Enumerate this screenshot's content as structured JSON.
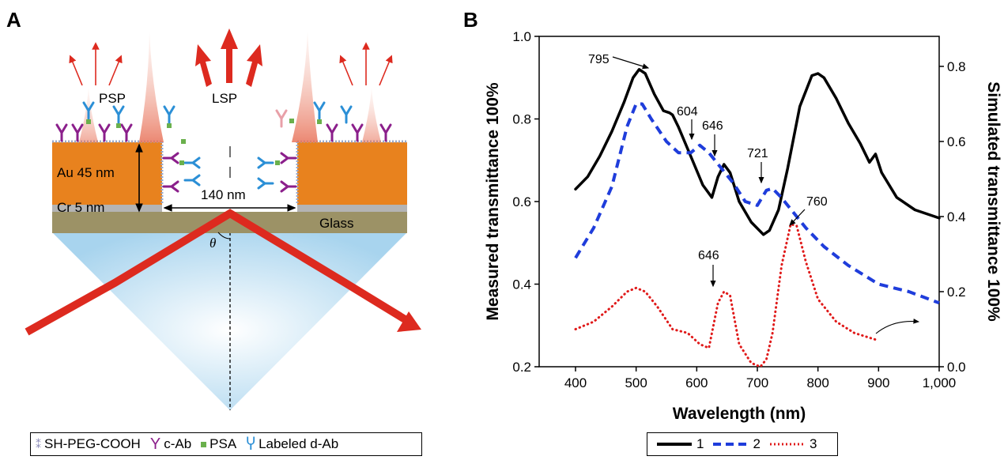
{
  "panelA": {
    "letter": "A",
    "labels": {
      "psp": "PSP",
      "lsp": "LSP",
      "au": "Au 45 nm",
      "cr": "Cr 5 nm",
      "width": "140 nm",
      "glass": "Glass",
      "theta": "θ"
    },
    "legend": [
      {
        "icon": "peg-linker-icon",
        "label": "SH-PEG-COOH",
        "color": "#8a8ab8"
      },
      {
        "icon": "capture-antibody-icon",
        "label": "c-Ab",
        "color": "#8b1f8b"
      },
      {
        "icon": "psa-square-icon",
        "label": "PSA",
        "color": "#6ab04c"
      },
      {
        "icon": "labeled-antibody-icon",
        "label": "Labeled d-Ab",
        "color": "#2b8fd6"
      }
    ],
    "colors": {
      "gold": "#e8821e",
      "chromium": "#b4b4b4",
      "glass": "#9c9266",
      "beam": "#dd2a1f",
      "prism": "#a8d4ee"
    }
  },
  "panelB": {
    "letter": "B",
    "chart_data": {
      "type": "line",
      "xlabel": "Wavelength (nm)",
      "ylabel": "Measured transmittance 100%",
      "y2label": "Simulated transmittance 100%",
      "xlim": [
        340,
        1000
      ],
      "ylim": [
        0.2,
        1.0
      ],
      "y2lim": [
        0.0,
        0.88
      ],
      "xticks": [
        400,
        500,
        600,
        700,
        800,
        900,
        1000
      ],
      "xtick_labels": [
        "400",
        "500",
        "600",
        "700",
        "800",
        "900",
        "1,000"
      ],
      "yticks": [
        0.2,
        0.4,
        0.6,
        0.8,
        1.0
      ],
      "ytick_labels": [
        "0.2",
        "0.4",
        "0.6",
        "0.8",
        "1.0"
      ],
      "y2ticks": [
        0.0,
        0.2,
        0.4,
        0.6,
        0.8
      ],
      "y2tick_labels": [
        "0.0",
        "0.2",
        "0.4",
        "0.6",
        "0.8"
      ],
      "grid": false,
      "legend_position": "bottom",
      "series": [
        {
          "name": "1",
          "axis": "left",
          "style": "solid",
          "color": "#000000",
          "x": [
            400,
            420,
            440,
            460,
            480,
            495,
            505,
            515,
            530,
            545,
            555,
            560,
            570,
            590,
            610,
            625,
            635,
            645,
            655,
            670,
            690,
            710,
            720,
            735,
            750,
            770,
            790,
            800,
            810,
            830,
            850,
            870,
            885,
            895,
            905,
            930,
            960,
            1000
          ],
          "y": [
            0.63,
            0.66,
            0.71,
            0.77,
            0.84,
            0.9,
            0.92,
            0.91,
            0.86,
            0.82,
            0.815,
            0.81,
            0.78,
            0.71,
            0.64,
            0.61,
            0.66,
            0.69,
            0.67,
            0.6,
            0.55,
            0.52,
            0.53,
            0.58,
            0.68,
            0.83,
            0.905,
            0.91,
            0.9,
            0.85,
            0.79,
            0.74,
            0.695,
            0.715,
            0.67,
            0.61,
            0.58,
            0.56
          ]
        },
        {
          "name": "2",
          "axis": "right",
          "style": "dashed",
          "color": "#1f3ddb",
          "x": [
            400,
            430,
            460,
            485,
            500,
            510,
            525,
            550,
            570,
            590,
            605,
            620,
            640,
            660,
            680,
            700,
            715,
            725,
            740,
            760,
            780,
            810,
            850,
            900,
            950,
            1000
          ],
          "y": [
            0.29,
            0.37,
            0.48,
            0.64,
            0.7,
            0.7,
            0.66,
            0.6,
            0.57,
            0.57,
            0.59,
            0.57,
            0.53,
            0.49,
            0.44,
            0.43,
            0.47,
            0.475,
            0.45,
            0.41,
            0.37,
            0.32,
            0.27,
            0.22,
            0.2,
            0.17
          ]
        },
        {
          "name": "3",
          "axis": "right",
          "style": "dotted",
          "color": "#e01a1a",
          "x": [
            400,
            430,
            460,
            485,
            500,
            515,
            535,
            560,
            585,
            605,
            620,
            635,
            645,
            655,
            670,
            690,
            705,
            715,
            725,
            740,
            755,
            765,
            780,
            800,
            830,
            860,
            900
          ],
          "y": [
            0.1,
            0.12,
            0.16,
            0.2,
            0.21,
            0.2,
            0.16,
            0.1,
            0.09,
            0.06,
            0.05,
            0.17,
            0.2,
            0.19,
            0.06,
            0.01,
            0.0,
            0.02,
            0.09,
            0.27,
            0.38,
            0.375,
            0.28,
            0.18,
            0.12,
            0.09,
            0.07
          ]
        }
      ],
      "annotations": [
        {
          "text": "795",
          "x": 795,
          "series": 0
        },
        {
          "text": "604",
          "x": 604,
          "series": 1
        },
        {
          "text": "646",
          "x": 646,
          "series": 0
        },
        {
          "text": "721",
          "x": 721,
          "series": 1
        },
        {
          "text": "760",
          "x": 760,
          "series": 2
        },
        {
          "text": "646",
          "x": 646,
          "series": 2
        }
      ]
    },
    "legend": [
      {
        "label": "1",
        "style": "solid",
        "color": "#000000"
      },
      {
        "label": "2",
        "style": "dashed",
        "color": "#1f3ddb"
      },
      {
        "label": "3",
        "style": "dotted",
        "color": "#e01a1a"
      }
    ]
  }
}
